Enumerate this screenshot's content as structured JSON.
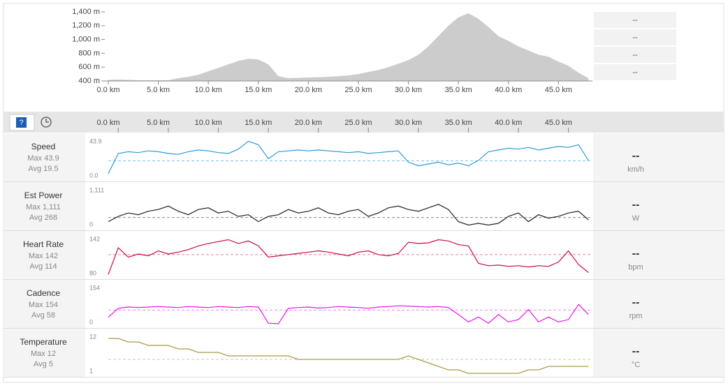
{
  "chart_data": [
    {
      "type": "area",
      "color": "#cccccc",
      "x": [
        0,
        1,
        2,
        3,
        4,
        5,
        6,
        7,
        8,
        9,
        10,
        11,
        12,
        13,
        14,
        15,
        16,
        17,
        18,
        19,
        20,
        21,
        22,
        23,
        24,
        25,
        26,
        27,
        28,
        29,
        30,
        31,
        32,
        33,
        34,
        35,
        36,
        37,
        38,
        39,
        40,
        41,
        42,
        43,
        44,
        45,
        46,
        47,
        48
      ],
      "values": [
        415,
        420,
        415,
        410,
        410,
        410,
        410,
        440,
        460,
        490,
        540,
        590,
        640,
        690,
        720,
        710,
        640,
        470,
        440,
        445,
        450,
        455,
        460,
        470,
        480,
        500,
        530,
        560,
        600,
        650,
        700,
        780,
        900,
        1050,
        1200,
        1320,
        1380,
        1300,
        1180,
        1050,
        980,
        900,
        840,
        780,
        750,
        680,
        620,
        520,
        440
      ],
      "xlim": [
        0,
        48.4
      ],
      "ylim": [
        400,
        1400
      ],
      "xticks": [
        {
          "value": 0,
          "label": "0.0 km"
        },
        {
          "value": 5,
          "label": "5.0 km"
        },
        {
          "value": 10,
          "label": "10.0 km"
        },
        {
          "value": 15,
          "label": "15.0 km"
        },
        {
          "value": 20,
          "label": "20.0 km"
        },
        {
          "value": 25,
          "label": "25.0 km"
        },
        {
          "value": 30,
          "label": "30.0 km"
        },
        {
          "value": 35,
          "label": "35.0 km"
        },
        {
          "value": 40,
          "label": "40.0 km"
        },
        {
          "value": 45,
          "label": "45.0 km"
        }
      ],
      "yticks": [
        {
          "value": 400,
          "label": "400 m"
        },
        {
          "value": 600,
          "label": "600 m"
        },
        {
          "value": 800,
          "label": "800 m"
        },
        {
          "value": 1000,
          "label": "1,000 m"
        },
        {
          "value": 1200,
          "label": "1,200 m"
        },
        {
          "value": 1400,
          "label": "1,400 m"
        }
      ]
    },
    {
      "type": "line",
      "name": "Speed",
      "color": "#2e9ad6",
      "max_label": "Max 43.9",
      "avg_label": "Avg 19.5",
      "avg": 19.5,
      "readout": "--",
      "unit": "km/h",
      "x": [
        0,
        1,
        2,
        3,
        4,
        5,
        6,
        7,
        8,
        9,
        10,
        11,
        12,
        13,
        14,
        15,
        16,
        17,
        18,
        19,
        20,
        21,
        22,
        23,
        24,
        25,
        26,
        27,
        28,
        29,
        30,
        31,
        32,
        33,
        34,
        35,
        36,
        37,
        38,
        39,
        40,
        41,
        42,
        43,
        44,
        45,
        46,
        47,
        48
      ],
      "values": [
        5,
        28,
        30,
        29,
        31,
        30,
        28,
        27,
        30,
        32,
        31,
        29,
        28,
        33,
        42,
        38,
        22,
        30,
        31,
        32,
        31,
        32,
        31,
        30,
        29,
        30,
        28,
        29,
        30,
        31,
        18,
        14,
        16,
        18,
        15,
        17,
        14,
        20,
        30,
        32,
        34,
        33,
        35,
        32,
        34,
        36,
        35,
        38,
        20
      ],
      "ylim": [
        0,
        43.9
      ],
      "yticks": [
        {
          "value": 0,
          "label": "0.0"
        },
        43.9
      ]
    },
    {
      "type": "line",
      "name": "Est Power",
      "color": "#222222",
      "max_label": "Max 1,111",
      "avg_label": "Avg 268",
      "avg": 268,
      "readout": "--",
      "unit": "W",
      "x": [
        0,
        1,
        2,
        3,
        4,
        5,
        6,
        7,
        8,
        9,
        10,
        11,
        12,
        13,
        14,
        15,
        16,
        17,
        18,
        19,
        20,
        21,
        22,
        23,
        24,
        25,
        26,
        27,
        28,
        29,
        30,
        31,
        32,
        33,
        34,
        35,
        36,
        37,
        38,
        39,
        40,
        41,
        42,
        43,
        44,
        45,
        46,
        47,
        48
      ],
      "values": [
        150,
        300,
        400,
        350,
        450,
        500,
        600,
        450,
        350,
        500,
        550,
        400,
        450,
        300,
        350,
        150,
        300,
        350,
        500,
        400,
        450,
        550,
        400,
        350,
        450,
        500,
        300,
        400,
        550,
        600,
        500,
        450,
        550,
        650,
        500,
        150,
        50,
        100,
        50,
        100,
        300,
        400,
        150,
        350,
        250,
        300,
        400,
        450,
        200
      ],
      "ylim": [
        0,
        1111
      ],
      "yticks": [
        0,
        {
          "value": 1111,
          "label": "1,111"
        }
      ]
    },
    {
      "type": "line",
      "name": "Heart Rate",
      "color": "#cc0a45",
      "max_label": "Max 142",
      "avg_label": "Avg 114",
      "avg": 114,
      "readout": "--",
      "unit": "bpm",
      "x": [
        0,
        1,
        2,
        3,
        4,
        5,
        6,
        7,
        8,
        9,
        10,
        11,
        12,
        13,
        14,
        15,
        16,
        17,
        18,
        19,
        20,
        21,
        22,
        23,
        24,
        25,
        26,
        27,
        28,
        29,
        30,
        31,
        32,
        33,
        34,
        35,
        36,
        37,
        38,
        39,
        40,
        41,
        42,
        43,
        44,
        45,
        46,
        47,
        48
      ],
      "values": [
        82,
        125,
        110,
        115,
        112,
        120,
        115,
        118,
        122,
        128,
        132,
        135,
        138,
        132,
        136,
        128,
        110,
        112,
        114,
        116,
        118,
        120,
        118,
        115,
        112,
        118,
        120,
        114,
        112,
        116,
        134,
        132,
        133,
        138,
        136,
        130,
        128,
        100,
        96,
        97,
        95,
        96,
        94,
        96,
        95,
        102,
        120,
        98,
        85
      ],
      "ylim": [
        80,
        142
      ],
      "yticks": [
        80,
        142
      ]
    },
    {
      "type": "line",
      "name": "Cadence",
      "color": "#e614e6",
      "max_label": "Max 154",
      "avg_label": "Avg 58",
      "avg": 58,
      "readout": "--",
      "unit": "rpm",
      "x": [
        0,
        1,
        2,
        3,
        4,
        5,
        6,
        7,
        8,
        9,
        10,
        11,
        12,
        13,
        14,
        15,
        16,
        17,
        18,
        19,
        20,
        21,
        22,
        23,
        24,
        25,
        26,
        27,
        28,
        29,
        30,
        31,
        32,
        33,
        34,
        35,
        36,
        37,
        38,
        39,
        40,
        41,
        42,
        43,
        44,
        45,
        46,
        47,
        48
      ],
      "values": [
        30,
        65,
        70,
        68,
        70,
        72,
        70,
        68,
        72,
        70,
        68,
        72,
        70,
        68,
        72,
        70,
        5,
        3,
        65,
        68,
        70,
        66,
        68,
        72,
        70,
        68,
        65,
        70,
        72,
        75,
        74,
        72,
        70,
        72,
        68,
        40,
        10,
        30,
        5,
        40,
        10,
        20,
        60,
        10,
        30,
        10,
        20,
        80,
        40
      ],
      "ylim": [
        0,
        154
      ],
      "yticks": [
        0,
        154
      ]
    },
    {
      "type": "line",
      "name": "Temperature",
      "color": "#a89a4a",
      "max_label": "Max 12",
      "avg_label": "Avg 5",
      "avg": 5,
      "readout": "--",
      "unit": "°C",
      "x": [
        0,
        1,
        2,
        3,
        4,
        5,
        6,
        7,
        8,
        9,
        10,
        11,
        12,
        13,
        14,
        15,
        16,
        17,
        18,
        19,
        20,
        21,
        22,
        23,
        24,
        25,
        26,
        27,
        28,
        29,
        30,
        31,
        32,
        33,
        34,
        35,
        36,
        37,
        38,
        39,
        40,
        41,
        42,
        43,
        44,
        45,
        46,
        47,
        48
      ],
      "values": [
        11,
        11,
        10,
        10,
        9,
        9,
        9,
        8,
        8,
        7,
        7,
        7,
        6,
        6,
        6,
        6,
        6,
        6,
        6,
        5,
        5,
        5,
        5,
        5,
        5,
        5,
        5,
        5,
        5,
        5,
        6,
        5,
        4,
        3,
        2,
        2,
        1,
        1,
        1,
        1,
        1,
        1,
        2,
        2,
        3,
        3,
        3,
        3,
        3
      ],
      "ylim": [
        1,
        12
      ],
      "yticks": [
        1,
        12
      ]
    }
  ],
  "side_panel": [
    "--",
    "--",
    "--",
    "--"
  ]
}
